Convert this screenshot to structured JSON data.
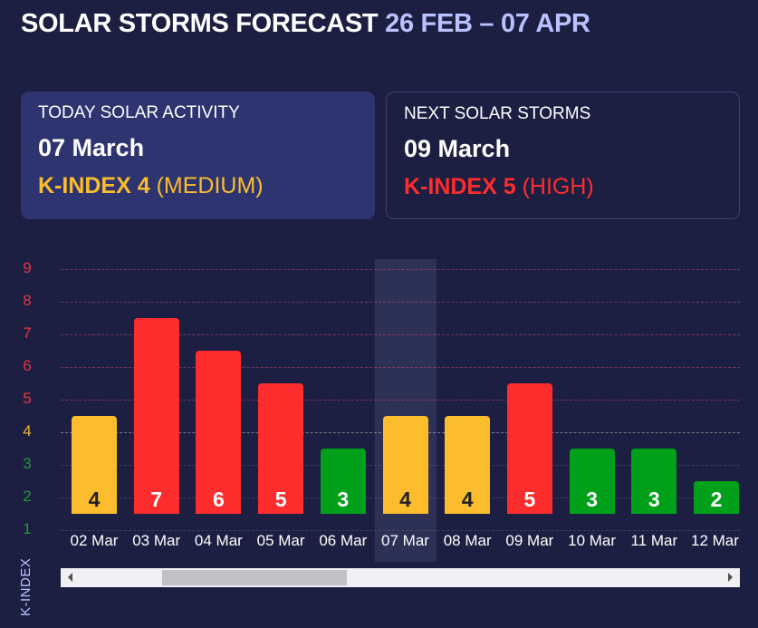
{
  "header": {
    "title": "SOLAR STORMS FORECAST",
    "range": "26 FEB – 07 APR"
  },
  "today": {
    "label": "TODAY SOLAR ACTIVITY",
    "date": "07 March",
    "kindex": "K-INDEX 4",
    "level": "(MEDIUM)",
    "color": "#fbbd2e"
  },
  "next": {
    "label": "NEXT SOLAR STORMS",
    "date": "09 March",
    "kindex": "K-INDEX 5",
    "level": "(HIGH)",
    "color": "#fd2d2d"
  },
  "chart_data": {
    "type": "bar",
    "ylabel": "K-INDEX",
    "yticks": [
      "1",
      "2",
      "3",
      "4",
      "5",
      "6",
      "7",
      "8",
      "9"
    ],
    "ylim": [
      1,
      9
    ],
    "categories": [
      "02 Mar",
      "03 Mar",
      "04 Mar",
      "05 Mar",
      "06 Mar",
      "07 Mar",
      "08 Mar",
      "09 Mar",
      "10 Mar",
      "11 Mar",
      "12 Mar"
    ],
    "values": [
      4,
      7,
      6,
      5,
      3,
      4,
      4,
      5,
      3,
      3,
      2
    ],
    "labels": [
      "4",
      "7",
      "6",
      "5",
      "3",
      "4",
      "4",
      "5",
      "3",
      "3",
      "2"
    ],
    "highlighted": "07 Mar",
    "colors": {
      "low": "#00a01a",
      "medium": "#fbbd2e",
      "high": "#fd2d2d"
    }
  }
}
